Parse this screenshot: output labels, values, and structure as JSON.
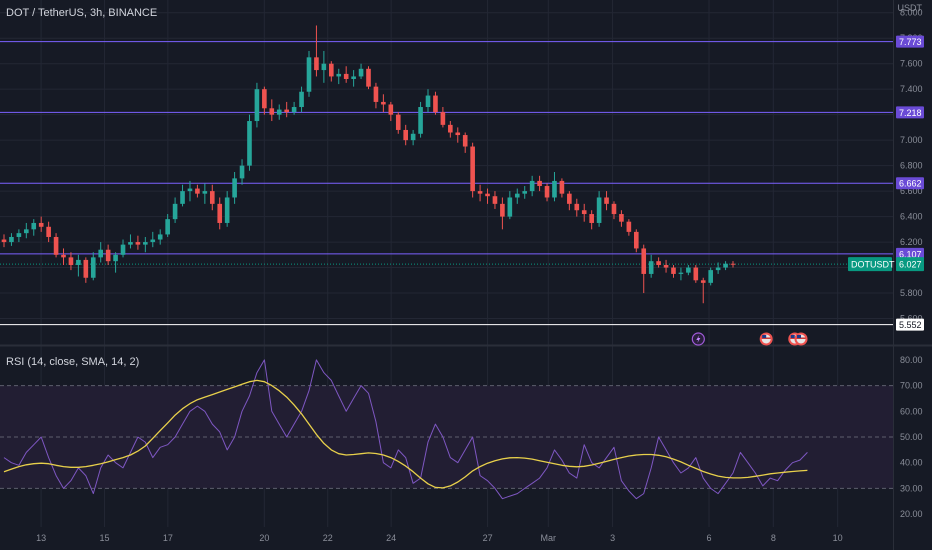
{
  "header": {
    "symbol_line": "DOT / TetherUS, 3h, BINANCE",
    "unit": "USDT"
  },
  "rsi": {
    "label": "RSI (14, close, SMA, 14, 2)"
  },
  "colors": {
    "bg": "#161a25",
    "up": "#26a69a",
    "down": "#ef5350",
    "level": "#7b61ff",
    "rsi_line": "#7e57c2",
    "rsi_ma": "#e8d04b",
    "grid": "#232734",
    "axis_text": "#8a8e99"
  },
  "chart_data": [
    {
      "type": "candlestick",
      "title": "DOT / TetherUS, 3h, BINANCE",
      "ylabel": "USDT",
      "ylim": [
        5.4,
        8.1
      ],
      "price_ticks": [
        5.6,
        5.8,
        6.0,
        6.2,
        6.4,
        6.6,
        6.8,
        7.0,
        7.2,
        7.4,
        7.6,
        7.8,
        8.0
      ],
      "x_labels": [
        {
          "label": "13",
          "pos": 0.046
        },
        {
          "label": "15",
          "pos": 0.117
        },
        {
          "label": "17",
          "pos": 0.188
        },
        {
          "label": "20",
          "pos": 0.296
        },
        {
          "label": "22",
          "pos": 0.367
        },
        {
          "label": "24",
          "pos": 0.438
        },
        {
          "label": "27",
          "pos": 0.546
        },
        {
          "label": "Mar",
          "pos": 0.614
        },
        {
          "label": "3",
          "pos": 0.686
        },
        {
          "label": "6",
          "pos": 0.794
        },
        {
          "label": "8",
          "pos": 0.866
        },
        {
          "label": "10",
          "pos": 0.938
        }
      ],
      "horizontal_levels": [
        {
          "value": 7.773,
          "label": "7.773",
          "color": "#7b61ff"
        },
        {
          "value": 7.218,
          "label": "7.218",
          "color": "#7b61ff"
        },
        {
          "value": 6.662,
          "label": "6.662",
          "color": "#7b61ff"
        },
        {
          "value": 6.107,
          "label": "6.107",
          "color": "#7b61ff"
        },
        {
          "value": 5.552,
          "label": "5.552",
          "color": "#ffffff"
        }
      ],
      "current_price": {
        "value": 6.027,
        "label": "6.027",
        "name": "DOTUSDT",
        "color": "#089981"
      },
      "series": [
        {
          "name": "DOTUSDT",
          "ohlc": [
            [
              6.22,
              6.26,
              6.16,
              6.2
            ],
            [
              6.2,
              6.27,
              6.17,
              6.24
            ],
            [
              6.24,
              6.3,
              6.2,
              6.27
            ],
            [
              6.27,
              6.35,
              6.23,
              6.3
            ],
            [
              6.3,
              6.38,
              6.25,
              6.35
            ],
            [
              6.35,
              6.4,
              6.28,
              6.32
            ],
            [
              6.32,
              6.36,
              6.2,
              6.24
            ],
            [
              6.24,
              6.27,
              6.08,
              6.1
            ],
            [
              6.1,
              6.15,
              6.02,
              6.08
            ],
            [
              6.08,
              6.12,
              5.98,
              6.02
            ],
            [
              6.02,
              6.1,
              5.93,
              6.06
            ],
            [
              6.06,
              6.08,
              5.88,
              5.92
            ],
            [
              5.92,
              6.12,
              5.9,
              6.08
            ],
            [
              6.08,
              6.2,
              6.04,
              6.14
            ],
            [
              6.14,
              6.18,
              6.02,
              6.05
            ],
            [
              6.05,
              6.12,
              5.96,
              6.1
            ],
            [
              6.1,
              6.22,
              6.08,
              6.18
            ],
            [
              6.18,
              6.26,
              6.15,
              6.2
            ],
            [
              6.2,
              6.25,
              6.14,
              6.18
            ],
            [
              6.18,
              6.24,
              6.12,
              6.2
            ],
            [
              6.2,
              6.28,
              6.16,
              6.22
            ],
            [
              6.22,
              6.3,
              6.18,
              6.26
            ],
            [
              6.26,
              6.42,
              6.24,
              6.38
            ],
            [
              6.38,
              6.55,
              6.35,
              6.5
            ],
            [
              6.5,
              6.65,
              6.48,
              6.6
            ],
            [
              6.6,
              6.68,
              6.52,
              6.62
            ],
            [
              6.62,
              6.65,
              6.55,
              6.58
            ],
            [
              6.58,
              6.66,
              6.5,
              6.6
            ],
            [
              6.6,
              6.65,
              6.45,
              6.5
            ],
            [
              6.5,
              6.55,
              6.3,
              6.35
            ],
            [
              6.35,
              6.6,
              6.32,
              6.55
            ],
            [
              6.55,
              6.75,
              6.5,
              6.7
            ],
            [
              6.7,
              6.85,
              6.65,
              6.8
            ],
            [
              6.8,
              7.2,
              6.76,
              7.15
            ],
            [
              7.15,
              7.45,
              7.1,
              7.4
            ],
            [
              7.4,
              7.42,
              7.2,
              7.25
            ],
            [
              7.25,
              7.32,
              7.15,
              7.2
            ],
            [
              7.2,
              7.28,
              7.16,
              7.24
            ],
            [
              7.24,
              7.3,
              7.18,
              7.22
            ],
            [
              7.22,
              7.3,
              7.2,
              7.26
            ],
            [
              7.26,
              7.42,
              7.22,
              7.38
            ],
            [
              7.38,
              7.7,
              7.34,
              7.65
            ],
            [
              7.65,
              7.9,
              7.5,
              7.55
            ],
            [
              7.55,
              7.7,
              7.45,
              7.6
            ],
            [
              7.6,
              7.62,
              7.46,
              7.5
            ],
            [
              7.5,
              7.56,
              7.44,
              7.52
            ],
            [
              7.52,
              7.58,
              7.45,
              7.48
            ],
            [
              7.48,
              7.55,
              7.42,
              7.5
            ],
            [
              7.5,
              7.6,
              7.48,
              7.56
            ],
            [
              7.56,
              7.58,
              7.4,
              7.42
            ],
            [
              7.42,
              7.45,
              7.25,
              7.3
            ],
            [
              7.3,
              7.36,
              7.22,
              7.28
            ],
            [
              7.28,
              7.3,
              7.15,
              7.2
            ],
            [
              7.2,
              7.22,
              7.05,
              7.08
            ],
            [
              7.08,
              7.12,
              6.96,
              7.0
            ],
            [
              7.0,
              7.08,
              6.96,
              7.05
            ],
            [
              7.05,
              7.3,
              7.02,
              7.26
            ],
            [
              7.26,
              7.4,
              7.22,
              7.35
            ],
            [
              7.35,
              7.38,
              7.2,
              7.22
            ],
            [
              7.22,
              7.26,
              7.1,
              7.12
            ],
            [
              7.12,
              7.15,
              7.02,
              7.06
            ],
            [
              7.06,
              7.1,
              6.98,
              7.04
            ],
            [
              7.04,
              7.06,
              6.9,
              6.95
            ],
            [
              6.95,
              6.98,
              6.55,
              6.6
            ],
            [
              6.6,
              6.65,
              6.52,
              6.58
            ],
            [
              6.58,
              6.62,
              6.5,
              6.56
            ],
            [
              6.56,
              6.6,
              6.46,
              6.5
            ],
            [
              6.5,
              6.55,
              6.3,
              6.4
            ],
            [
              6.4,
              6.6,
              6.38,
              6.55
            ],
            [
              6.55,
              6.62,
              6.5,
              6.58
            ],
            [
              6.58,
              6.64,
              6.54,
              6.6
            ],
            [
              6.6,
              6.72,
              6.56,
              6.68
            ],
            [
              6.68,
              6.72,
              6.6,
              6.64
            ],
            [
              6.64,
              6.66,
              6.52,
              6.55
            ],
            [
              6.55,
              6.75,
              6.52,
              6.68
            ],
            [
              6.68,
              6.7,
              6.55,
              6.58
            ],
            [
              6.58,
              6.6,
              6.45,
              6.5
            ],
            [
              6.5,
              6.54,
              6.4,
              6.45
            ],
            [
              6.45,
              6.5,
              6.36,
              6.42
            ],
            [
              6.42,
              6.45,
              6.3,
              6.35
            ],
            [
              6.35,
              6.6,
              6.32,
              6.55
            ],
            [
              6.55,
              6.6,
              6.45,
              6.5
            ],
            [
              6.5,
              6.52,
              6.38,
              6.42
            ],
            [
              6.42,
              6.45,
              6.32,
              6.36
            ],
            [
              6.36,
              6.38,
              6.25,
              6.28
            ],
            [
              6.28,
              6.3,
              6.12,
              6.15
            ],
            [
              6.15,
              6.18,
              5.8,
              5.95
            ],
            [
              5.95,
              6.1,
              5.92,
              6.05
            ],
            [
              6.05,
              6.08,
              6.0,
              6.02
            ],
            [
              6.02,
              6.06,
              5.96,
              6.0
            ],
            [
              6.0,
              6.02,
              5.92,
              5.95
            ],
            [
              5.95,
              6.0,
              5.9,
              5.96
            ],
            [
              5.96,
              6.02,
              5.94,
              6.0
            ],
            [
              6.0,
              6.02,
              5.88,
              5.9
            ],
            [
              5.9,
              5.92,
              5.72,
              5.88
            ],
            [
              5.88,
              6.0,
              5.86,
              5.98
            ],
            [
              5.98,
              6.04,
              5.95,
              6.0
            ],
            [
              6.0,
              6.05,
              5.98,
              6.03
            ],
            [
              6.03,
              6.05,
              6.0,
              6.027
            ]
          ]
        }
      ],
      "event_markers": [
        {
          "kind": "lightning-icon",
          "pos": 0.782
        },
        {
          "kind": "flag-icon",
          "pos": 0.858
        },
        {
          "kind": "flag-icon",
          "pos": 0.89
        },
        {
          "kind": "flag-icon",
          "pos": 0.897
        }
      ]
    },
    {
      "type": "line",
      "title": "RSI (14, close, SMA, 14, 2)",
      "ylim": [
        15,
        85
      ],
      "yticks": [
        20.0,
        30.0,
        40.0,
        50.0,
        60.0,
        70.0,
        80.0
      ],
      "band": [
        30,
        70
      ],
      "midline": 50,
      "series": [
        {
          "name": "RSI",
          "values": [
            42,
            40,
            39,
            44,
            47,
            50,
            42,
            35,
            30,
            33,
            38,
            35,
            28,
            38,
            43,
            40,
            38,
            44,
            50,
            48,
            42,
            46,
            47,
            50,
            55,
            60,
            62,
            60,
            55,
            52,
            45,
            50,
            60,
            66,
            75,
            80,
            60,
            55,
            50,
            55,
            60,
            68,
            80,
            75,
            72,
            66,
            60,
            65,
            70,
            67,
            56,
            40,
            38,
            45,
            42,
            32,
            34,
            48,
            55,
            50,
            42,
            40,
            45,
            50,
            35,
            33,
            30,
            26,
            27,
            28,
            30,
            32,
            34,
            38,
            45,
            41,
            36,
            34,
            47,
            40,
            38,
            42,
            46,
            33,
            29,
            26,
            28,
            38,
            50,
            45,
            40,
            36,
            38,
            42,
            34,
            30,
            28,
            32,
            36,
            44,
            40,
            36,
            31,
            34,
            33,
            37,
            40,
            41,
            44
          ]
        },
        {
          "name": "RSI-based MA",
          "values": [
            36.5,
            37.5,
            38.5,
            39.2,
            39.6,
            39.8,
            39.6,
            39.0,
            38.5,
            38.2,
            38.2,
            38.5,
            39.0,
            39.6,
            40.3,
            41.2,
            42.0,
            43.0,
            44.5,
            46.5,
            49.5,
            52.5,
            55.5,
            58.5,
            61.0,
            63.0,
            64.5,
            65.5,
            66.5,
            67.5,
            68.5,
            69.5,
            70.5,
            71.5,
            72.0,
            71.5,
            70.0,
            68.0,
            65.5,
            62.5,
            59.0,
            55.0,
            51.0,
            47.5,
            45.0,
            43.5,
            43.0,
            43.2,
            43.5,
            43.8,
            43.6,
            43.0,
            42.0,
            40.5,
            38.7,
            36.5,
            34.0,
            31.8,
            30.4,
            30.2,
            31.0,
            32.5,
            34.5,
            36.8,
            38.5,
            39.8,
            40.8,
            41.5,
            41.9,
            42.0,
            41.8,
            41.4,
            40.8,
            40.2,
            39.6,
            39.0,
            38.6,
            38.4,
            38.6,
            39.1,
            39.8,
            40.5,
            41.3,
            42.0,
            42.6,
            43.0,
            43.2,
            43.2,
            42.9,
            42.3,
            41.4,
            40.3,
            39.0,
            37.8,
            36.6,
            35.6,
            34.8,
            34.3,
            34.1,
            34.1,
            34.3,
            34.7,
            35.2,
            35.7,
            36.0,
            36.3,
            36.6,
            36.8,
            37.0
          ]
        }
      ]
    }
  ]
}
